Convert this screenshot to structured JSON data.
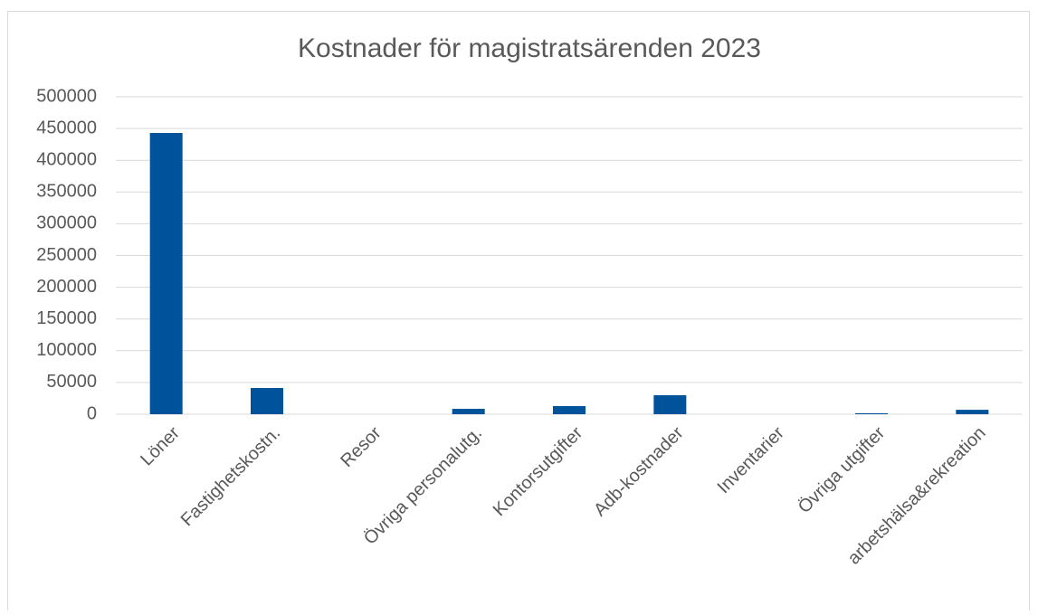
{
  "chart_data": {
    "type": "bar",
    "title": "Kostnader för magistratsärenden 2023",
    "categories": [
      "Löner",
      "Fastighetskostn.",
      "Resor",
      "Övriga personalutg.",
      "Kontorsutgifter",
      "Adb-kostnader",
      "Inventarier",
      "Övriga utgifter",
      "arbetshälsa&rekreation"
    ],
    "values": [
      443000,
      41300,
      0,
      8500,
      12800,
      29900,
      0,
      1500,
      7000
    ],
    "color": "#00539b",
    "ylim": [
      0,
      500000
    ],
    "yticks": [
      0,
      50000,
      100000,
      150000,
      200000,
      250000,
      300000,
      350000,
      400000,
      450000,
      500000
    ],
    "grid": true
  }
}
